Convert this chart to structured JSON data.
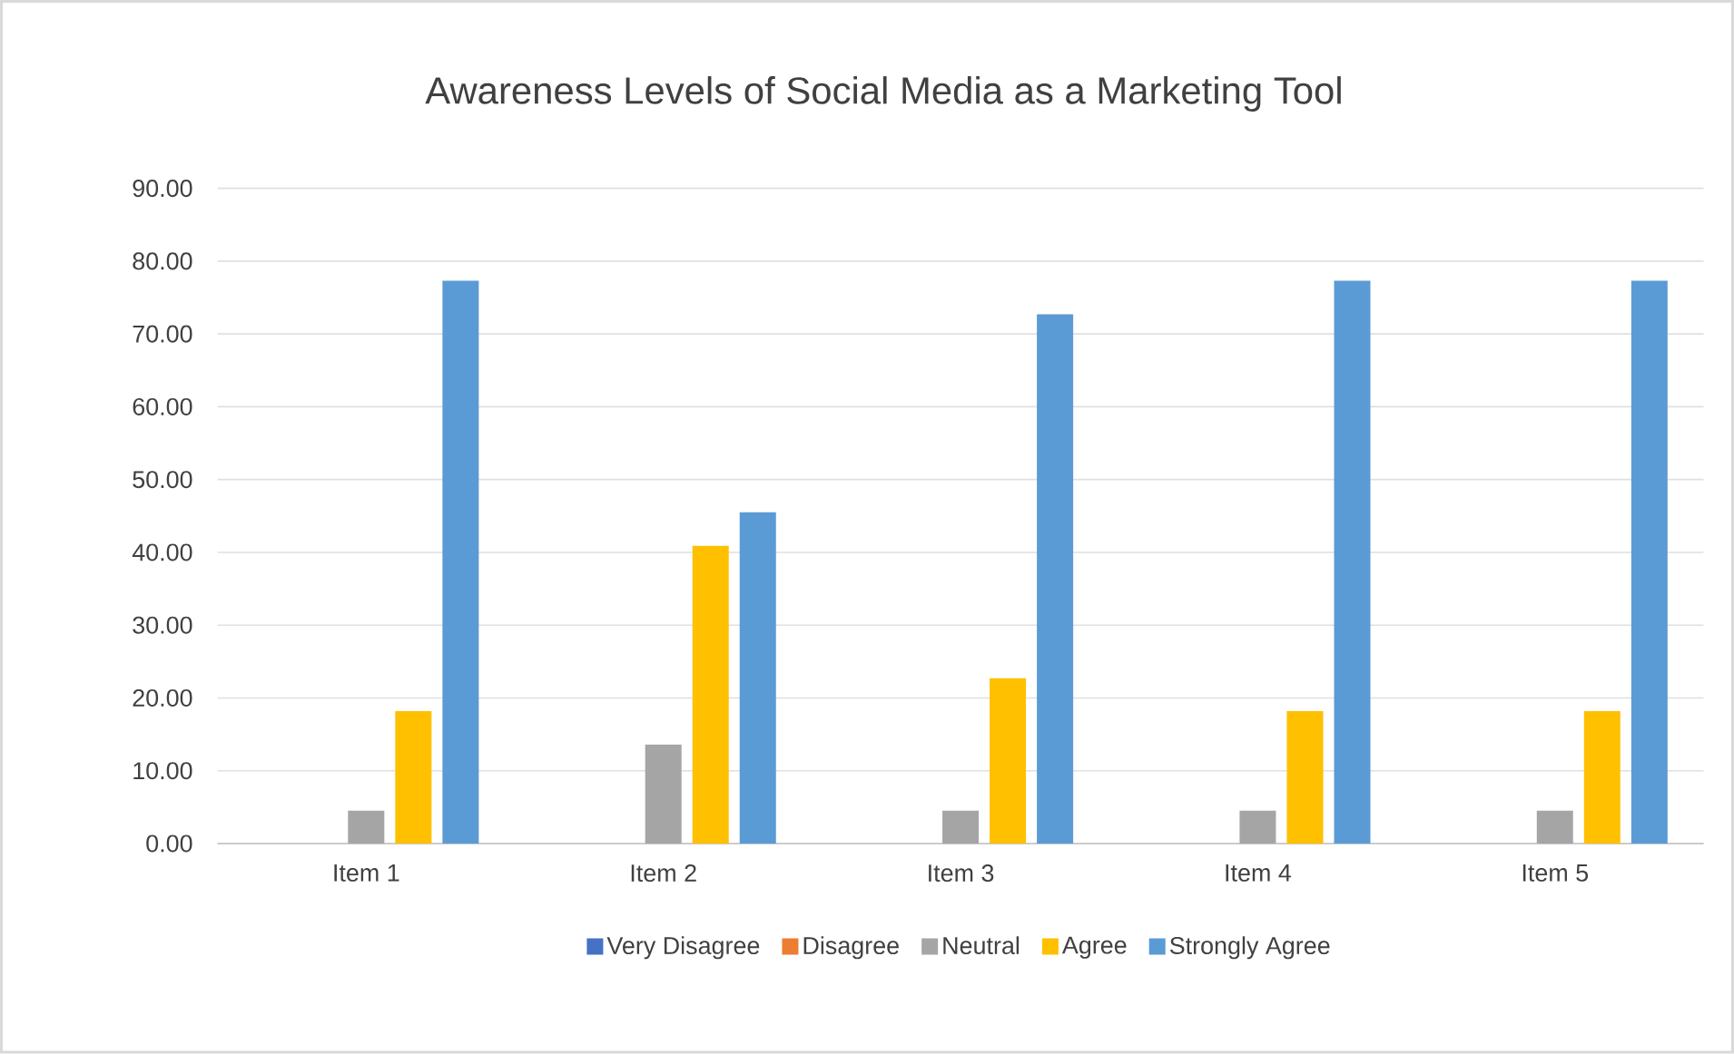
{
  "chart_data": {
    "type": "bar",
    "title": "Awareness Levels of Social Media as a Marketing Tool",
    "categories": [
      "Item 1",
      "Item 2",
      "Item 3",
      "Item 4",
      "Item 5"
    ],
    "series": [
      {
        "name": "Very Disagree",
        "color": "#4472c4",
        "values": [
          0,
          0,
          0,
          0,
          0
        ]
      },
      {
        "name": "Disagree",
        "color": "#ed7d31",
        "values": [
          0,
          0,
          0,
          0,
          0
        ]
      },
      {
        "name": "Neutral",
        "color": "#a5a5a5",
        "values": [
          4.5,
          13.6,
          4.5,
          4.5,
          4.5
        ]
      },
      {
        "name": "Agree",
        "color": "#ffc000",
        "values": [
          18.2,
          40.9,
          22.7,
          18.2,
          18.2
        ]
      },
      {
        "name": "Strongly Agree",
        "color": "#5b9bd5",
        "values": [
          77.3,
          45.5,
          72.7,
          77.3,
          77.3
        ]
      }
    ],
    "ylim": [
      0,
      90
    ],
    "yticks": [
      {
        "value": 0,
        "label": "0.00"
      },
      {
        "value": 10,
        "label": "10.00"
      },
      {
        "value": 20,
        "label": "20.00"
      },
      {
        "value": 30,
        "label": "30.00"
      },
      {
        "value": 40,
        "label": "40.00"
      },
      {
        "value": 50,
        "label": "50.00"
      },
      {
        "value": 60,
        "label": "60.00"
      },
      {
        "value": 70,
        "label": "70.00"
      },
      {
        "value": 80,
        "label": "80.00"
      },
      {
        "value": 90,
        "label": "90.00"
      }
    ],
    "grid": "y",
    "legend": "bottom"
  }
}
